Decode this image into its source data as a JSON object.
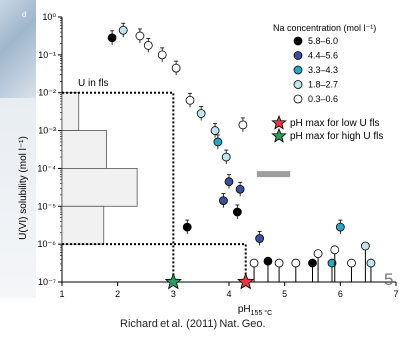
{
  "edge_text": "d",
  "citation": "Richard␣et␣al. (2011)␣Nat.␣Geo.",
  "citation_display": "Richard et al. (2011) Nat. Geo.",
  "slide_number": "5",
  "chart_data": {
    "type": "scatter",
    "title": "",
    "xlabel": "pH",
    "xlabel_sub": "155 °C",
    "ylabel": "U(VI) solubility (mol l⁻¹)",
    "xlim": [
      1,
      7
    ],
    "ylim_log10": [
      -7,
      0
    ],
    "x_ticks": [
      "1",
      "2",
      "3",
      "4",
      "5",
      "6",
      "7"
    ],
    "y_tick_labels": [
      {
        "exp": -7,
        "label": "10⁻⁷"
      },
      {
        "exp": -6,
        "label": "10⁻⁶"
      },
      {
        "exp": -5,
        "label": "10⁻⁵"
      },
      {
        "exp": -4,
        "label": "10⁻⁴"
      },
      {
        "exp": -3,
        "label": "10⁻³"
      },
      {
        "exp": -2,
        "label": "10⁻²"
      },
      {
        "exp": -1,
        "label": "10⁻¹"
      },
      {
        "exp": 0,
        "label": "10⁰"
      }
    ],
    "legend": {
      "title": "Na concentration (mol l⁻¹)",
      "placement": "top-right",
      "entries": [
        {
          "label": "5.8–6.0",
          "color": "#000000"
        },
        {
          "label": "4.4–5.6",
          "color": "#3b4f9e"
        },
        {
          "label": "3.3–4.3",
          "color": "#25a9c2"
        },
        {
          "label": "1.8–2.7",
          "color": "#bfe6ee"
        },
        {
          "label": "0.3–0.6",
          "color": "#ffffff"
        }
      ],
      "star_entries": [
        {
          "label": "pH max for low U fls",
          "color": "#e63946"
        },
        {
          "label": "pH max for high U fls",
          "color": "#2a9d5c"
        }
      ]
    },
    "histogram": {
      "label": "U in fls",
      "bins": [
        {
          "low_exp": -2,
          "high_exp": -3,
          "value": 1.3
        },
        {
          "low_exp": -3,
          "high_exp": -4,
          "value": 1.8
        },
        {
          "low_exp": -4,
          "high_exp": -5,
          "value": 2.35
        },
        {
          "low_exp": -5,
          "high_exp": -6,
          "value": 1.75
        }
      ]
    },
    "points": [
      {
        "x": 1.9,
        "y_exp": -0.55,
        "group": 0
      },
      {
        "x": 2.1,
        "y_exp": -0.35,
        "group": 3
      },
      {
        "x": 2.4,
        "y_exp": -0.5,
        "group": 4
      },
      {
        "x": 2.55,
        "y_exp": -0.75,
        "group": 4
      },
      {
        "x": 2.8,
        "y_exp": -1.0,
        "group": 4
      },
      {
        "x": 3.05,
        "y_exp": -1.35,
        "group": 4
      },
      {
        "x": 3.3,
        "y_exp": -2.2,
        "group": 4
      },
      {
        "x": 3.5,
        "y_exp": -2.55,
        "group": 3
      },
      {
        "x": 3.75,
        "y_exp": -3.0,
        "group": 3
      },
      {
        "x": 3.8,
        "y_exp": -3.3,
        "group": 2
      },
      {
        "x": 3.95,
        "y_exp": -3.7,
        "group": 3
      },
      {
        "x": 4.25,
        "y_exp": -2.85,
        "group": 4
      },
      {
        "x": 4.0,
        "y_exp": -4.35,
        "group": 1
      },
      {
        "x": 4.2,
        "y_exp": -4.55,
        "group": 1
      },
      {
        "x": 3.9,
        "y_exp": -4.85,
        "group": 1
      },
      {
        "x": 3.25,
        "y_exp": -5.55,
        "group": 0
      },
      {
        "x": 4.15,
        "y_exp": -5.15,
        "group": 0
      },
      {
        "x": 4.55,
        "y_exp": -5.85,
        "group": 1
      },
      {
        "x": 4.7,
        "y_exp": -6.45,
        "group": 0
      },
      {
        "x": 4.45,
        "y_exp": -6.5,
        "group": 4
      },
      {
        "x": 4.9,
        "y_exp": -6.5,
        "group": 4
      },
      {
        "x": 5.2,
        "y_exp": -6.5,
        "group": 4
      },
      {
        "x": 5.5,
        "y_exp": -6.5,
        "group": 0
      },
      {
        "x": 5.6,
        "y_exp": -6.25,
        "group": 4
      },
      {
        "x": 5.85,
        "y_exp": -6.5,
        "group": 2
      },
      {
        "x": 6.0,
        "y_exp": -5.55,
        "group": 2
      },
      {
        "x": 6.2,
        "y_exp": -6.5,
        "group": 4
      },
      {
        "x": 6.45,
        "y_exp": -6.05,
        "group": 3
      },
      {
        "x": 6.55,
        "y_exp": -6.5,
        "group": 3
      },
      {
        "x": 5.9,
        "y_exp": -6.15,
        "group": 4
      }
    ],
    "stars": [
      {
        "x": 3.0,
        "y_exp": -7.0,
        "color": "#2a9d5c"
      },
      {
        "x": 4.3,
        "y_exp": -7.0,
        "color": "#e63946"
      }
    ],
    "dotted_paths": [
      {
        "from_exp": -2,
        "to_x": 3.0
      },
      {
        "from_exp": -6,
        "to_x": 4.3
      }
    ],
    "grey_bar": {
      "x_start": 4.5,
      "x_end": 5.1,
      "y_exp": -4.15
    }
  }
}
